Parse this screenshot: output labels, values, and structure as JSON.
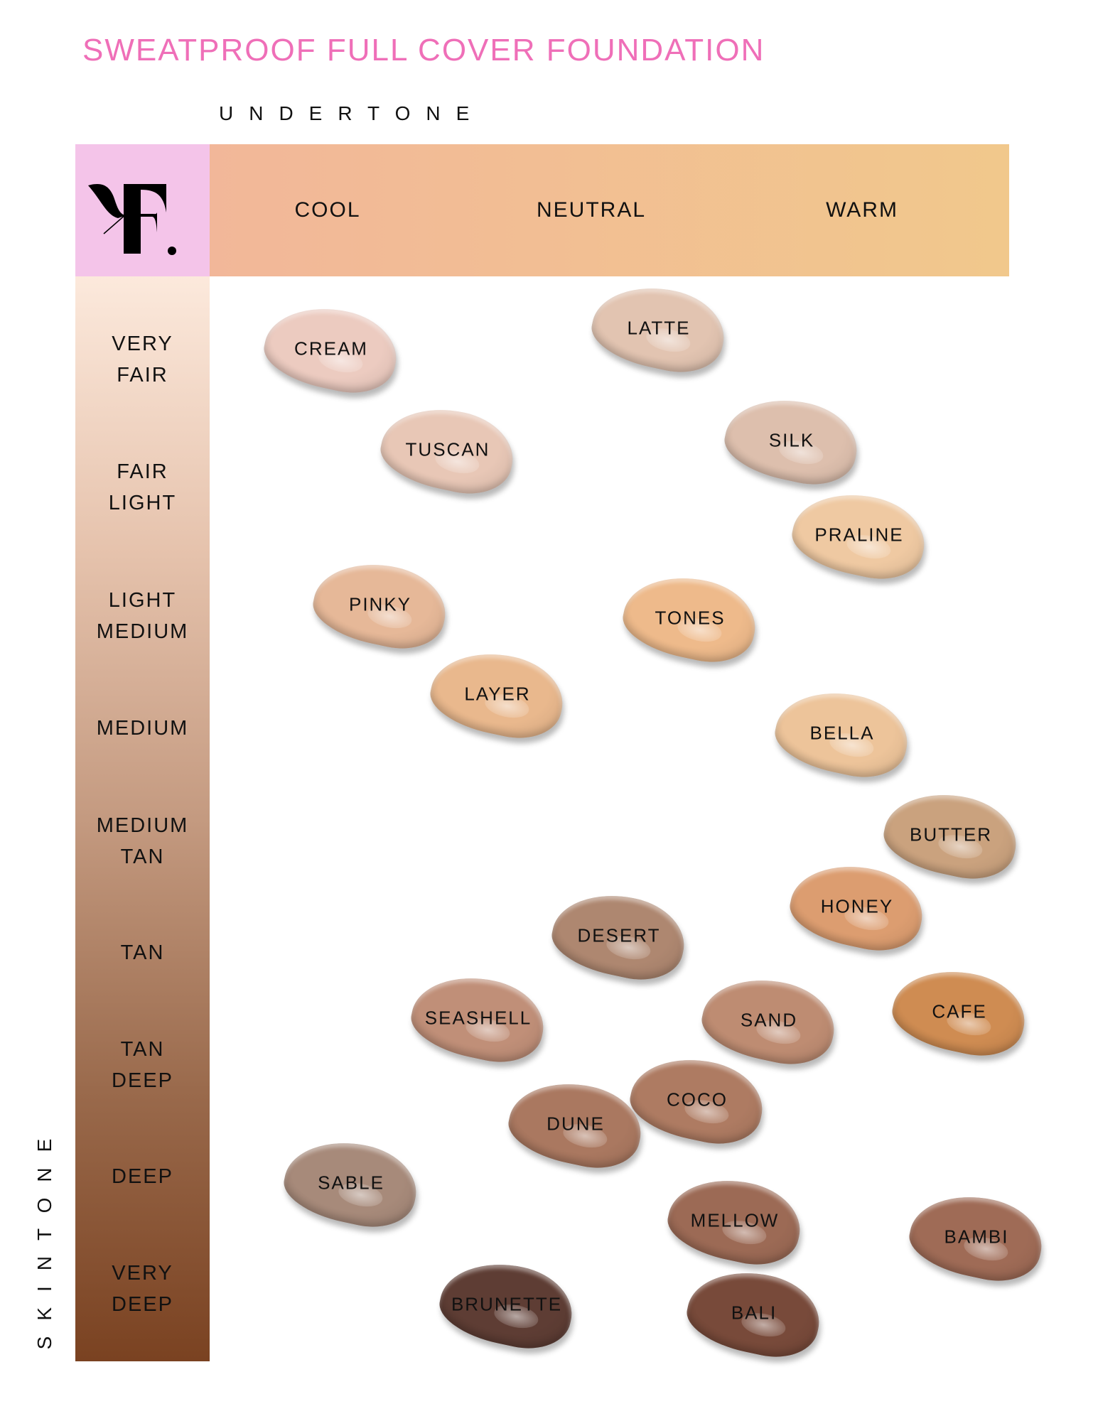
{
  "title": "SWEATPROOF FULL COVER FOUNDATION",
  "undertone_label": "UNDERTONE",
  "skintone_label": "SKINTONE",
  "logo": "F.",
  "colors": {
    "title": "#ef6fb8",
    "logo_bg": "#f4c4e9",
    "header_start": "#f2b799",
    "header_end": "#f1c88c",
    "skin_light": "#fce9dc",
    "skin_dark": "#7a4221"
  },
  "undertones": [
    "COOL",
    "NEUTRAL",
    "WARM"
  ],
  "skintones": [
    "VERY\nFAIR",
    "FAIR\nLIGHT",
    "LIGHT\nMEDIUM",
    "MEDIUM",
    "MEDIUM\nTAN",
    "TAN",
    "TAN\nDEEP",
    "DEEP",
    "VERY\nDEEP"
  ],
  "shades": [
    {
      "name": "CREAM",
      "color": "#eccbc0"
    },
    {
      "name": "LATTE",
      "color": "#e2c4b1"
    },
    {
      "name": "TUSCAN",
      "color": "#e8c7b6"
    },
    {
      "name": "SILK",
      "color": "#ddbfad"
    },
    {
      "name": "PRALINE",
      "color": "#efc9a2"
    },
    {
      "name": "PINKY",
      "color": "#e6b898"
    },
    {
      "name": "TONES",
      "color": "#eeba8b"
    },
    {
      "name": "LAYER",
      "color": "#e9b88d"
    },
    {
      "name": "BELLA",
      "color": "#edc49a"
    },
    {
      "name": "BUTTER",
      "color": "#caa27e"
    },
    {
      "name": "HONEY",
      "color": "#dc9d70"
    },
    {
      "name": "DESERT",
      "color": "#ae8770"
    },
    {
      "name": "SEASHELL",
      "color": "#c08f78"
    },
    {
      "name": "SAND",
      "color": "#be8c72"
    },
    {
      "name": "CAFE",
      "color": "#cf8c52"
    },
    {
      "name": "COCO",
      "color": "#ae7b62"
    },
    {
      "name": "DUNE",
      "color": "#aa7860"
    },
    {
      "name": "SABLE",
      "color": "#a78a7a"
    },
    {
      "name": "MELLOW",
      "color": "#9c6a55"
    },
    {
      "name": "BAMBI",
      "color": "#9f6b56"
    },
    {
      "name": "BRUNETTE",
      "color": "#5e3d34"
    },
    {
      "name": "BALI",
      "color": "#784a3a"
    }
  ]
}
